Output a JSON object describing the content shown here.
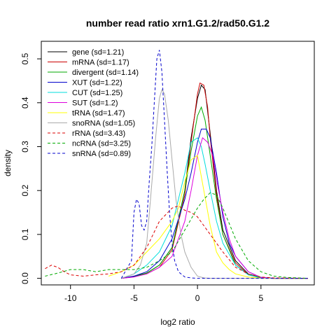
{
  "chart_data": {
    "type": "line",
    "title": "number read ratio xrn1.G1.2/rad50.G1.2",
    "xlabel": "log2 ratio",
    "ylabel": "density",
    "xlim": [
      -12.3,
      9.2
    ],
    "ylim": [
      -0.015,
      0.54
    ],
    "x_ticks": [
      -10,
      -5,
      0,
      5
    ],
    "y_ticks": [
      0.0,
      0.1,
      0.2,
      0.3,
      0.4,
      0.5
    ],
    "x_tick_labels": [
      "-10",
      "-5",
      "0",
      "5"
    ],
    "y_tick_labels": [
      "0.0",
      "0.1",
      "0.2",
      "0.3",
      "0.4",
      "0.5"
    ],
    "grid": false,
    "legend_position": "top-left",
    "series": [
      {
        "name": "gene (sd=1.21)",
        "color": "#000000",
        "dash": "solid",
        "x": [
          -6,
          -5,
          -4,
          -3,
          -2,
          -1,
          -0.5,
          0,
          0.3,
          0.6,
          1,
          1.5,
          2,
          3,
          4,
          5,
          6,
          8.7
        ],
        "y": [
          0,
          0.005,
          0.012,
          0.03,
          0.07,
          0.2,
          0.32,
          0.41,
          0.44,
          0.43,
          0.33,
          0.2,
          0.11,
          0.04,
          0.01,
          0.002,
          0,
          0
        ]
      },
      {
        "name": "mRNA (sd=1.17)",
        "color": "#cc0000",
        "dash": "solid",
        "x": [
          -6,
          -5,
          -4,
          -3,
          -2,
          -1,
          -0.5,
          0,
          0.2,
          0.5,
          0.8,
          1,
          1.5,
          2,
          3,
          4,
          5,
          6,
          8.7
        ],
        "y": [
          0,
          0.004,
          0.01,
          0.025,
          0.065,
          0.19,
          0.31,
          0.42,
          0.445,
          0.44,
          0.39,
          0.32,
          0.19,
          0.1,
          0.035,
          0.008,
          0.001,
          0,
          0
        ]
      },
      {
        "name": "divergent (sd=1.14)",
        "color": "#00aa00",
        "dash": "solid",
        "x": [
          -6,
          -5,
          -4,
          -3,
          -2,
          -1,
          -0.5,
          0,
          0.3,
          0.6,
          1,
          1.5,
          2,
          3,
          4,
          5,
          6,
          8.7
        ],
        "y": [
          0,
          0.004,
          0.012,
          0.03,
          0.07,
          0.2,
          0.29,
          0.37,
          0.39,
          0.36,
          0.28,
          0.18,
          0.1,
          0.03,
          0.008,
          0.001,
          0,
          0
        ]
      },
      {
        "name": "XUT (sd=1.22)",
        "color": "#0000cc",
        "dash": "solid",
        "x": [
          -6,
          -5,
          -4,
          -3,
          -2,
          -1,
          -0.5,
          0,
          0.3,
          0.7,
          1,
          1.5,
          2,
          2.5,
          3,
          4,
          5,
          6,
          8.7
        ],
        "y": [
          0,
          0.005,
          0.015,
          0.04,
          0.09,
          0.18,
          0.24,
          0.31,
          0.34,
          0.34,
          0.32,
          0.24,
          0.14,
          0.08,
          0.05,
          0.015,
          0.002,
          0,
          0
        ]
      },
      {
        "name": "CUT (sd=1.25)",
        "color": "#00dddd",
        "dash": "solid",
        "x": [
          -6,
          -5,
          -4,
          -3,
          -2,
          -1,
          -0.5,
          0,
          0.3,
          0.6,
          1,
          1.5,
          2,
          3,
          4,
          5,
          6,
          8.7
        ],
        "y": [
          0,
          0.01,
          0.03,
          0.06,
          0.12,
          0.24,
          0.31,
          0.32,
          0.3,
          0.26,
          0.2,
          0.13,
          0.08,
          0.03,
          0.008,
          0.002,
          0,
          0
        ]
      },
      {
        "name": "SUT (sd=1.2)",
        "color": "#dd00dd",
        "dash": "solid",
        "x": [
          -6,
          -5,
          -4,
          -3,
          -2,
          -1,
          -0.5,
          0,
          0.4,
          0.8,
          1.2,
          1.6,
          2,
          2.5,
          3,
          4,
          5,
          6,
          8.7
        ],
        "y": [
          0,
          0.003,
          0.01,
          0.025,
          0.05,
          0.13,
          0.2,
          0.28,
          0.32,
          0.31,
          0.28,
          0.21,
          0.15,
          0.09,
          0.05,
          0.015,
          0.002,
          0,
          0
        ]
      },
      {
        "name": "tRNA (sd=1.47)",
        "color": "#ffff00",
        "dash": "solid",
        "x": [
          -7,
          -6,
          -5,
          -4,
          -3,
          -2,
          -1.5,
          -1,
          -0.5,
          0,
          0.5,
          1,
          1.5,
          2,
          2.5,
          3,
          4,
          5,
          8.7
        ],
        "y": [
          0.005,
          0.015,
          0.03,
          0.06,
          0.09,
          0.13,
          0.16,
          0.22,
          0.27,
          0.28,
          0.2,
          0.12,
          0.06,
          0.035,
          0.02,
          0.01,
          0.003,
          0,
          0
        ]
      },
      {
        "name": "snoRNA (sd=1.05)",
        "color": "#aaaaaa",
        "dash": "solid",
        "x": [
          -6,
          -5,
          -4.5,
          -4,
          -3.7,
          -3.3,
          -3,
          -2.8,
          -2.6,
          -2.3,
          -2,
          -1.7,
          -1.3,
          -1,
          -0.5,
          0,
          0.5,
          1,
          2,
          8.7
        ],
        "y": [
          0,
          0.01,
          0.03,
          0.08,
          0.18,
          0.32,
          0.41,
          0.43,
          0.42,
          0.36,
          0.27,
          0.18,
          0.1,
          0.06,
          0.025,
          0.005,
          0.001,
          0,
          0,
          0
        ]
      },
      {
        "name": "rRNA (sd=3.43)",
        "color": "#dd0000",
        "dash": "dashed",
        "x": [
          -12,
          -11.5,
          -11,
          -10.5,
          -10,
          -9,
          -8,
          -7,
          -6,
          -5,
          -4,
          -3,
          -2,
          -1.5,
          -1,
          -0.5,
          0,
          1,
          2,
          3,
          4,
          5,
          6,
          8.7
        ],
        "y": [
          0.022,
          0.03,
          0.025,
          0.015,
          0.008,
          0.005,
          0.008,
          0.01,
          0.015,
          0.03,
          0.07,
          0.13,
          0.16,
          0.165,
          0.155,
          0.15,
          0.14,
          0.1,
          0.06,
          0.025,
          0.01,
          0.003,
          0.001,
          0
        ]
      },
      {
        "name": "ncRNA (sd=3.25)",
        "color": "#00aa00",
        "dash": "dashed",
        "x": [
          -12,
          -11,
          -10,
          -9,
          -8,
          -7,
          -6,
          -5,
          -4,
          -3,
          -2,
          -1,
          0,
          0.5,
          1,
          1.5,
          2,
          3,
          4,
          5,
          6,
          7,
          8.7
        ],
        "y": [
          0.005,
          0.012,
          0.02,
          0.02,
          0.015,
          0.02,
          0.02,
          0.02,
          0.025,
          0.04,
          0.06,
          0.11,
          0.16,
          0.18,
          0.195,
          0.19,
          0.16,
          0.09,
          0.04,
          0.015,
          0.005,
          0.002,
          0
        ]
      },
      {
        "name": "snRNA (sd=0.89)",
        "color": "#0000cc",
        "dash": "dashed",
        "x": [
          -6,
          -5.2,
          -5,
          -4.8,
          -4.6,
          -4.4,
          -4.2,
          -4,
          -3.8,
          -3.6,
          -3.4,
          -3.2,
          -3,
          -2.8,
          -2.6,
          -2.4,
          -2.2,
          -2,
          -1.8,
          -1.5,
          -1,
          -0.5,
          0,
          1,
          8.7
        ],
        "y": [
          0,
          0.04,
          0.15,
          0.18,
          0.17,
          0.12,
          0.11,
          0.13,
          0.22,
          0.3,
          0.4,
          0.5,
          0.52,
          0.47,
          0.36,
          0.25,
          0.15,
          0.08,
          0.04,
          0.015,
          0.003,
          0.001,
          0,
          0,
          0
        ]
      }
    ]
  }
}
